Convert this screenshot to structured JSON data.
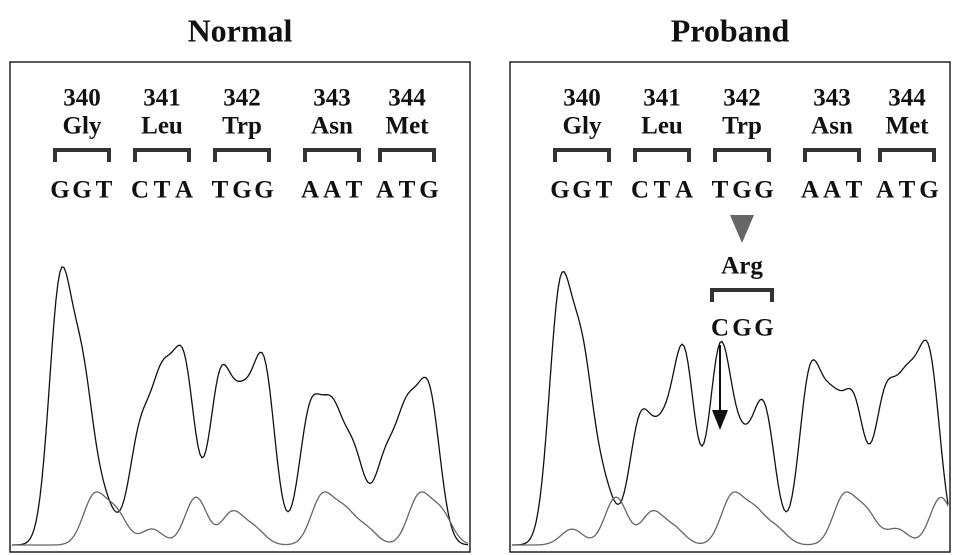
{
  "panels": [
    {
      "title": "Normal",
      "codons": [
        {
          "number": 340,
          "amino_acid": "Gly"
        },
        {
          "number": 341,
          "amino_acid": "Leu"
        },
        {
          "number": 342,
          "amino_acid": "Trp"
        },
        {
          "number": 343,
          "amino_acid": "Asn"
        },
        {
          "number": 344,
          "amino_acid": "Met"
        }
      ],
      "bases": [
        "G",
        "G",
        "T",
        "C",
        "T",
        "A",
        "T",
        "G",
        "G",
        "A",
        "A",
        "T",
        "A",
        "T",
        "G"
      ]
    },
    {
      "title": "Proband",
      "codons": [
        {
          "number": 340,
          "amino_acid": "Gly"
        },
        {
          "number": 341,
          "amino_acid": "Leu"
        },
        {
          "number": 342,
          "amino_acid": "Trp"
        },
        {
          "number": 343,
          "amino_acid": "Asn"
        },
        {
          "number": 344,
          "amino_acid": "Met"
        }
      ],
      "bases": [
        "G",
        "G",
        "T",
        "C",
        "T",
        "A",
        "T",
        "G",
        "G",
        "A",
        "A",
        "T",
        "A",
        "T",
        "G"
      ],
      "mutation": {
        "amino_acid": "Arg",
        "bases": [
          "C",
          "G",
          "G"
        ]
      }
    }
  ]
}
